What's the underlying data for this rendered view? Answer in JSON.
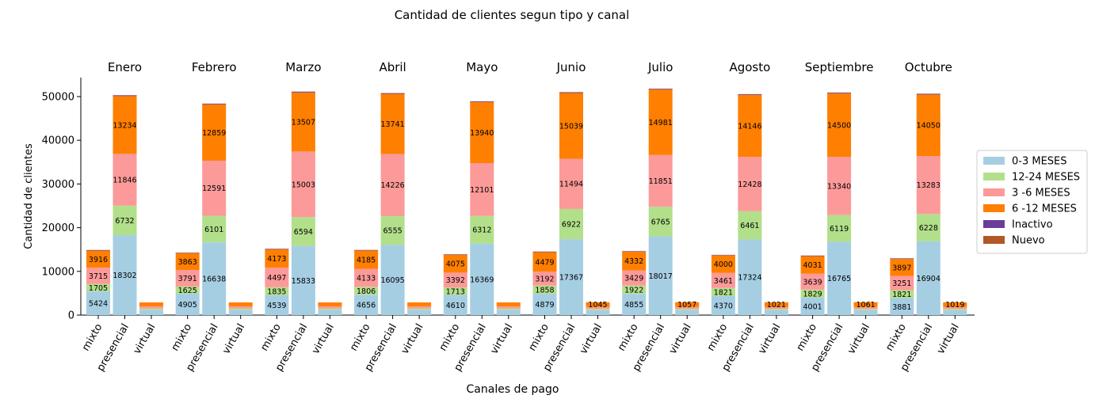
{
  "chart_data": {
    "type": "bar",
    "stacked": true,
    "title": "Cantidad de clientes segun tipo y canal",
    "xlabel": "Canales de pago",
    "ylabel": "Cantidad de clientes",
    "ylim": [
      0,
      54000
    ],
    "yticks": [
      0,
      10000,
      20000,
      30000,
      40000,
      50000
    ],
    "grid": false,
    "legend_position": "right",
    "groups": [
      "Enero",
      "Febrero",
      "Marzo",
      "Abril",
      "Mayo",
      "Junio",
      "Julio",
      "Agosto",
      "Septiembre",
      "Octubre"
    ],
    "categories": [
      "mixto",
      "presencial",
      "virtual"
    ],
    "series": [
      {
        "name": "0-3 MESES",
        "color": "#a6cee3",
        "values": [
          [
            5424,
            18302,
            1200
          ],
          [
            4905,
            16638,
            1200
          ],
          [
            4539,
            15833,
            1200
          ],
          [
            4656,
            16095,
            1200
          ],
          [
            4610,
            16369,
            1200
          ],
          [
            4879,
            17367,
            1100
          ],
          [
            4855,
            18017,
            1100
          ],
          [
            4370,
            17324,
            1100
          ],
          [
            4001,
            16765,
            1100
          ],
          [
            3881,
            16904,
            1100
          ]
        ],
        "labels": [
          [
            "5424",
            "18302",
            ""
          ],
          [
            "4905",
            "16638",
            ""
          ],
          [
            "4539",
            "15833",
            ""
          ],
          [
            "4656",
            "16095",
            ""
          ],
          [
            "4610",
            "16369",
            ""
          ],
          [
            "4879",
            "17367",
            ""
          ],
          [
            "4855",
            "18017",
            ""
          ],
          [
            "4370",
            "17324",
            ""
          ],
          [
            "4001",
            "16765",
            ""
          ],
          [
            "3881",
            "16904",
            ""
          ]
        ]
      },
      {
        "name": "12-24 MESES",
        "color": "#b2df8a",
        "values": [
          [
            1705,
            6732,
            300
          ],
          [
            1625,
            6101,
            300
          ],
          [
            1835,
            6594,
            300
          ],
          [
            1806,
            6555,
            300
          ],
          [
            1713,
            6312,
            300
          ],
          [
            1858,
            6922,
            300
          ],
          [
            1922,
            6765,
            300
          ],
          [
            1821,
            6461,
            300
          ],
          [
            1829,
            6119,
            300
          ],
          [
            1821,
            6228,
            300
          ]
        ],
        "labels": [
          [
            "1705",
            "6732",
            ""
          ],
          [
            "1625",
            "6101",
            ""
          ],
          [
            "1835",
            "6594",
            ""
          ],
          [
            "1806",
            "6555",
            ""
          ],
          [
            "1713",
            "6312",
            ""
          ],
          [
            "1858",
            "6922",
            ""
          ],
          [
            "1922",
            "6765",
            ""
          ],
          [
            "1821",
            "6461",
            ""
          ],
          [
            "1829",
            "6119",
            ""
          ],
          [
            "1821",
            "6228",
            ""
          ]
        ]
      },
      {
        "name": "3 -6 MESES",
        "color": "#fb9a99",
        "values": [
          [
            3715,
            11846,
            500
          ],
          [
            3791,
            12591,
            500
          ],
          [
            4497,
            15003,
            500
          ],
          [
            4133,
            14226,
            500
          ],
          [
            3392,
            12101,
            500
          ],
          [
            3192,
            11494,
            500
          ],
          [
            3429,
            11851,
            500
          ],
          [
            3461,
            12428,
            500
          ],
          [
            3639,
            13340,
            500
          ],
          [
            3251,
            13283,
            500
          ]
        ],
        "labels": [
          [
            "3715",
            "11846",
            ""
          ],
          [
            "3791",
            "12591",
            ""
          ],
          [
            "4497",
            "15003",
            ""
          ],
          [
            "4133",
            "14226",
            ""
          ],
          [
            "3392",
            "12101",
            ""
          ],
          [
            "3192",
            "11494",
            ""
          ],
          [
            "3429",
            "11851",
            ""
          ],
          [
            "3461",
            "12428",
            ""
          ],
          [
            "3639",
            "13340",
            ""
          ],
          [
            "3251",
            "13283",
            ""
          ]
        ]
      },
      {
        "name": "6 -12 MESES",
        "color": "#ff7f00",
        "values": [
          [
            3916,
            13234,
            900
          ],
          [
            3863,
            12859,
            900
          ],
          [
            4173,
            13507,
            900
          ],
          [
            4185,
            13741,
            900
          ],
          [
            4075,
            13940,
            900
          ],
          [
            4479,
            15039,
            1045
          ],
          [
            4332,
            14981,
            1057
          ],
          [
            4000,
            14146,
            1021
          ],
          [
            4031,
            14500,
            1061
          ],
          [
            3897,
            14050,
            1019
          ]
        ],
        "labels": [
          [
            "3916",
            "13234",
            ""
          ],
          [
            "3863",
            "12859",
            ""
          ],
          [
            "4173",
            "13507",
            ""
          ],
          [
            "4185",
            "13741",
            ""
          ],
          [
            "4075",
            "13940",
            ""
          ],
          [
            "4479",
            "15039",
            "1045"
          ],
          [
            "4332",
            "14981",
            "1057"
          ],
          [
            "4000",
            "14146",
            "1021"
          ],
          [
            "4031",
            "14500",
            "1061"
          ],
          [
            "3897",
            "14050",
            "1019"
          ]
        ]
      },
      {
        "name": "Inactivo",
        "color": "#6a3d9a",
        "values": [
          [
            100,
            150,
            0
          ],
          [
            100,
            150,
            0
          ],
          [
            100,
            150,
            0
          ],
          [
            100,
            150,
            0
          ],
          [
            100,
            150,
            0
          ],
          [
            100,
            150,
            0
          ],
          [
            100,
            150,
            0
          ],
          [
            100,
            150,
            0
          ],
          [
            100,
            150,
            0
          ],
          [
            100,
            150,
            0
          ]
        ]
      },
      {
        "name": "Nuevo",
        "color": "#b15928",
        "values": [
          [
            40,
            60,
            0
          ],
          [
            40,
            60,
            0
          ],
          [
            40,
            60,
            0
          ],
          [
            40,
            60,
            0
          ],
          [
            40,
            60,
            0
          ],
          [
            40,
            60,
            0
          ],
          [
            40,
            60,
            0
          ],
          [
            40,
            60,
            0
          ],
          [
            40,
            60,
            0
          ],
          [
            40,
            60,
            0
          ]
        ]
      }
    ]
  }
}
